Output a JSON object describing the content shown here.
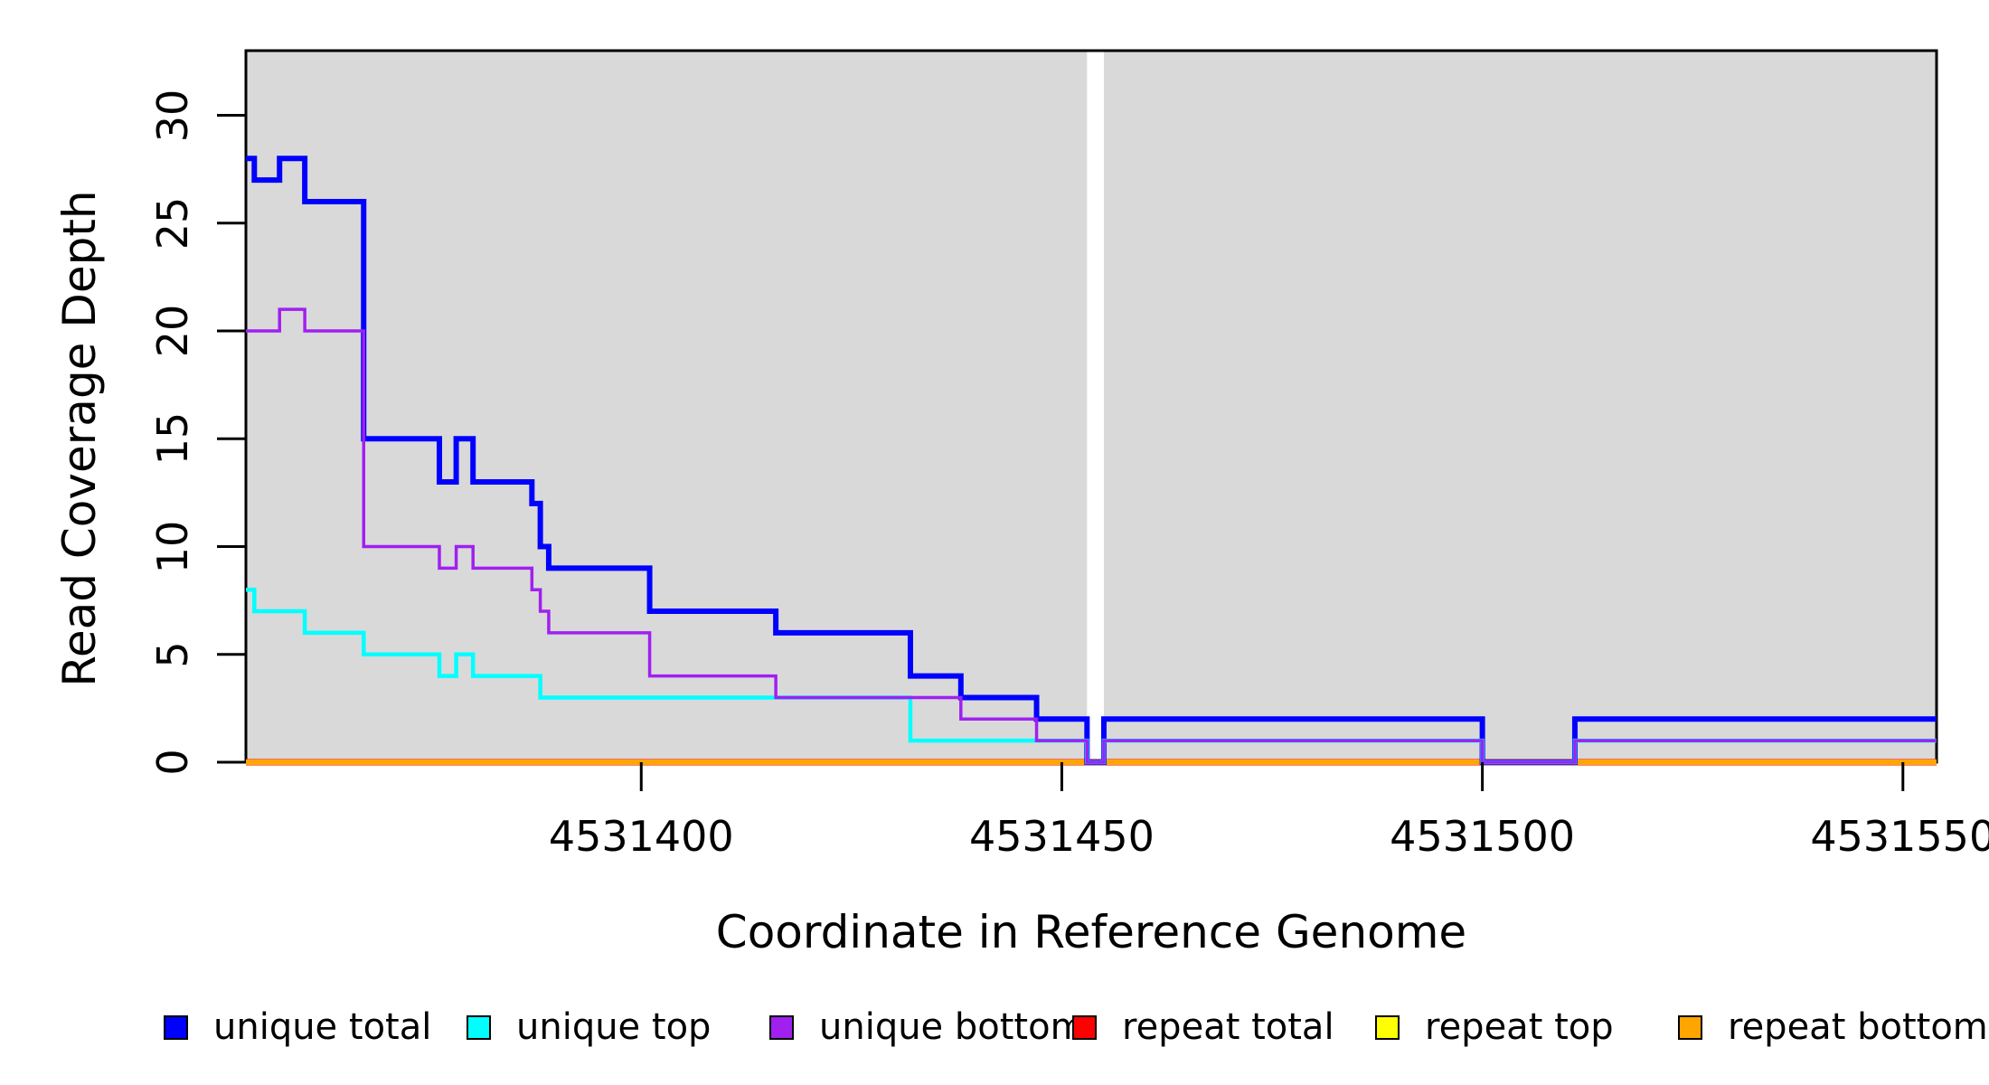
{
  "figure": {
    "background_color": "#FFFFFF",
    "plot_background_color": "#D9D9D9",
    "masked_band_color": "#FFFFFF",
    "axis_color": "#000000"
  },
  "chart_data": {
    "type": "line",
    "subtype": "step",
    "title": "",
    "xlabel": "Coordinate in Reference Genome",
    "ylabel": "Read Coverage Depth",
    "xlim": [
      4531353,
      4531554
    ],
    "ylim": [
      0,
      33
    ],
    "grid": false,
    "legend_position": "bottom",
    "x_ticks": [
      "4531400",
      "4531450",
      "4531500",
      "4531550"
    ],
    "x_tick_values": [
      4531400,
      4531450,
      4531500,
      4531550
    ],
    "y_ticks": [
      "0",
      "5",
      "10",
      "15",
      "20",
      "25",
      "30"
    ],
    "y_tick_values": [
      0,
      5,
      10,
      15,
      20,
      25,
      30
    ],
    "masked_region": [
      4531453,
      4531455
    ],
    "x_end": 4531554,
    "series": [
      {
        "name": "unique total",
        "color": "#0000FF",
        "lwd": 6,
        "steps": [
          [
            4531353,
            28
          ],
          [
            4531354,
            27
          ],
          [
            4531357,
            28
          ],
          [
            4531360,
            26
          ],
          [
            4531367,
            15
          ],
          [
            4531376,
            13
          ],
          [
            4531378,
            15
          ],
          [
            4531380,
            13
          ],
          [
            4531387,
            12
          ],
          [
            4531388,
            10
          ],
          [
            4531389,
            9
          ],
          [
            4531401,
            7
          ],
          [
            4531416,
            6
          ],
          [
            4531432,
            4
          ],
          [
            4531438,
            3
          ],
          [
            4531447,
            2
          ],
          [
            4531453,
            0
          ],
          [
            4531455,
            2
          ],
          [
            4531500,
            0
          ],
          [
            4531511,
            2
          ]
        ]
      },
      {
        "name": "unique top",
        "color": "#00FFFF",
        "lwd": 4.5,
        "steps": [
          [
            4531353,
            8
          ],
          [
            4531354,
            7
          ],
          [
            4531360,
            6
          ],
          [
            4531367,
            5
          ],
          [
            4531376,
            4
          ],
          [
            4531378,
            5
          ],
          [
            4531380,
            4
          ],
          [
            4531388,
            3
          ],
          [
            4531432,
            1
          ],
          [
            4531453,
            0
          ],
          [
            4531455,
            1
          ],
          [
            4531500,
            0
          ],
          [
            4531511,
            1
          ]
        ]
      },
      {
        "name": "unique bottom",
        "color": "#A020F0",
        "lwd": 3.5,
        "steps": [
          [
            4531353,
            20
          ],
          [
            4531357,
            21
          ],
          [
            4531360,
            20
          ],
          [
            4531367,
            10
          ],
          [
            4531376,
            9
          ],
          [
            4531378,
            10
          ],
          [
            4531380,
            9
          ],
          [
            4531387,
            8
          ],
          [
            4531388,
            7
          ],
          [
            4531389,
            6
          ],
          [
            4531401,
            4
          ],
          [
            4531416,
            3
          ],
          [
            4531438,
            2
          ],
          [
            4531447,
            1
          ],
          [
            4531453,
            0
          ],
          [
            4531455,
            1
          ],
          [
            4531500,
            0
          ],
          [
            4531511,
            1
          ]
        ]
      },
      {
        "name": "repeat total",
        "color": "#FF0000",
        "lwd": 7,
        "steps": [
          [
            4531353,
            0
          ]
        ]
      },
      {
        "name": "repeat top",
        "color": "#FFFF00",
        "lwd": 5.5,
        "steps": [
          [
            4531353,
            0
          ]
        ]
      },
      {
        "name": "repeat bottom",
        "color": "#FFA500",
        "lwd": 4.5,
        "steps": [
          [
            4531353,
            0
          ]
        ]
      }
    ],
    "draw_order": [
      3,
      4,
      5,
      0,
      1,
      2
    ]
  },
  "legend": {
    "items": [
      {
        "label": "unique total",
        "color": "#0000FF"
      },
      {
        "label": "unique top",
        "color": "#00FFFF"
      },
      {
        "label": "unique bottom",
        "color": "#A020F0"
      },
      {
        "label": "repeat total",
        "color": "#FF0000"
      },
      {
        "label": "repeat top",
        "color": "#FFFF00"
      },
      {
        "label": "repeat bottom",
        "color": "#FFA500"
      }
    ]
  }
}
